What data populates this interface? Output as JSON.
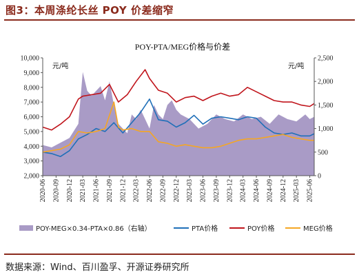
{
  "figure_title": "图3：本周涤纶长丝 POY 价差缩窄",
  "source": "数据来源：Wind、百川盈孚、开源证券研究所",
  "colors": {
    "accent": "#8a2a1c",
    "spread": "#a99bc6",
    "pta": "#1f6fb8",
    "poy": "#c0141b",
    "meg": "#f5a623"
  },
  "chart_data": {
    "type": "area",
    "title": "POY-PTA/MEG价格与价差",
    "left_axis": {
      "unit_label": "元/吨",
      "ylim": [
        2000,
        10000
      ],
      "ticks": [
        "2,000",
        "3,000",
        "4,000",
        "5,000",
        "6,000",
        "7,000",
        "8,000",
        "9,000",
        "10,000"
      ]
    },
    "right_axis": {
      "unit_label": "元/吨",
      "ylim": [
        0,
        2500
      ],
      "ticks": [
        "0",
        "500",
        "1,000",
        "1,500",
        "2,000",
        "2,500"
      ]
    },
    "x_ticks": [
      "2020-06",
      "2020-09",
      "2020-12",
      "2021-03",
      "2021-06",
      "2021-09",
      "2021-12",
      "2022-03",
      "2022-06",
      "2022-09",
      "2022-12",
      "2023-03",
      "2023-06",
      "2023-09",
      "2023-12",
      "2024-03",
      "2024-06",
      "2024-09",
      "2024-12",
      "2025-03",
      "2025-06"
    ],
    "x_range": [
      "2020-06",
      "2025-07"
    ],
    "legend": [
      "POY-MEG×0.34-PTA×0.86（右轴）",
      "PTA价格",
      "POY价格",
      "MEG价格"
    ],
    "series": [
      {
        "name": "POY-MEG×0.34-PTA×0.86（右轴）",
        "axis": "right",
        "style": "area",
        "x": [
          "2020-06",
          "2020-08",
          "2020-10",
          "2020-12",
          "2021-02",
          "2021-03",
          "2021-04",
          "2021-05",
          "2021-07",
          "2021-08",
          "2021-09",
          "2021-10",
          "2021-11",
          "2021-12",
          "2022-01",
          "2022-02",
          "2022-03",
          "2022-04",
          "2022-05",
          "2022-06",
          "2022-07",
          "2022-08",
          "2022-09",
          "2022-10",
          "2022-11",
          "2022-12",
          "2023-01",
          "2023-03",
          "2023-05",
          "2023-07",
          "2023-09",
          "2023-11",
          "2024-01",
          "2024-03",
          "2024-05",
          "2024-07",
          "2024-09",
          "2024-11",
          "2025-01",
          "2025-03",
          "2025-05",
          "2025-06",
          "2025-07"
        ],
        "values": [
          650,
          600,
          700,
          800,
          1100,
          2200,
          1800,
          1700,
          1900,
          1600,
          2000,
          1500,
          1100,
          1000,
          900,
          1300,
          1200,
          1400,
          1200,
          1000,
          1500,
          1300,
          1200,
          1500,
          1600,
          1400,
          1300,
          1200,
          1000,
          1100,
          1300,
          1200,
          1150,
          1300,
          1200,
          1250,
          1100,
          1300,
          1200,
          1150,
          1300,
          1200,
          1250
        ]
      },
      {
        "name": "PTA价格",
        "axis": "left",
        "style": "line",
        "x": [
          "2020-06",
          "2020-08",
          "2020-10",
          "2020-12",
          "2021-02",
          "2021-04",
          "2021-06",
          "2021-08",
          "2021-10",
          "2021-12",
          "2022-02",
          "2022-04",
          "2022-06",
          "2022-08",
          "2022-10",
          "2022-12",
          "2023-02",
          "2023-04",
          "2023-06",
          "2023-08",
          "2023-10",
          "2023-12",
          "2024-02",
          "2024-04",
          "2024-06",
          "2024-08",
          "2024-10",
          "2024-12",
          "2025-02",
          "2025-04",
          "2025-06",
          "2025-07"
        ],
        "values": [
          3600,
          3500,
          3300,
          3700,
          4500,
          4800,
          5200,
          5000,
          5600,
          4900,
          5600,
          6300,
          7200,
          5800,
          5700,
          5300,
          5600,
          6100,
          5500,
          5900,
          6000,
          5900,
          5800,
          6000,
          5900,
          5300,
          4900,
          4800,
          4900,
          4700,
          4700,
          4850
        ]
      },
      {
        "name": "POY价格",
        "axis": "left",
        "style": "line",
        "x": [
          "2020-06",
          "2020-08",
          "2020-10",
          "2020-12",
          "2021-02",
          "2021-03",
          "2021-05",
          "2021-07",
          "2021-09",
          "2021-11",
          "2022-01",
          "2022-03",
          "2022-05",
          "2022-06",
          "2022-08",
          "2022-10",
          "2022-12",
          "2023-02",
          "2023-04",
          "2023-06",
          "2023-08",
          "2023-10",
          "2023-12",
          "2024-02",
          "2024-04",
          "2024-06",
          "2024-08",
          "2024-10",
          "2024-12",
          "2025-02",
          "2025-04",
          "2025-06",
          "2025-07"
        ],
        "values": [
          5300,
          5100,
          5500,
          6000,
          7200,
          7400,
          7500,
          7600,
          8200,
          7000,
          7500,
          8400,
          9200,
          8600,
          7800,
          7600,
          7000,
          7300,
          7400,
          7100,
          7400,
          7600,
          7400,
          7500,
          8000,
          7700,
          7400,
          7100,
          7000,
          7000,
          6800,
          6700,
          6900
        ]
      },
      {
        "name": "MEG价格",
        "axis": "left",
        "style": "line",
        "x": [
          "2020-06",
          "2020-08",
          "2020-10",
          "2020-12",
          "2021-02",
          "2021-04",
          "2021-06",
          "2021-08",
          "2021-10",
          "2021-11",
          "2021-12",
          "2022-02",
          "2022-04",
          "2022-06",
          "2022-08",
          "2022-10",
          "2022-12",
          "2023-02",
          "2023-04",
          "2023-06",
          "2023-08",
          "2023-10",
          "2023-12",
          "2024-02",
          "2024-04",
          "2024-06",
          "2024-08",
          "2024-10",
          "2024-12",
          "2025-02",
          "2025-04",
          "2025-06",
          "2025-07"
        ],
        "values": [
          3600,
          3700,
          3800,
          4100,
          5000,
          4900,
          5000,
          5200,
          7000,
          5300,
          5100,
          5200,
          5000,
          5000,
          4300,
          4200,
          4000,
          4100,
          4000,
          3900,
          3900,
          4000,
          4200,
          4400,
          4500,
          4500,
          4600,
          4700,
          4800,
          4600,
          4500,
          4400,
          4400
        ]
      }
    ]
  }
}
